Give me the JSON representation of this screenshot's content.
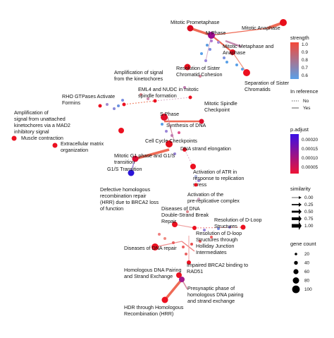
{
  "nodes": [
    {
      "id": "mitotic-prometaphase",
      "label": [
        "Mitotic Prometaphase"
      ],
      "color": "#d90a1f"
    },
    {
      "id": "m-phase",
      "label": [
        "M Phase"
      ],
      "color": "#9b0a8e"
    },
    {
      "id": "mitotic-anaphase",
      "label": [
        "Mitotic Anaphase"
      ],
      "color": "#e80e1a"
    },
    {
      "id": "mitotic-metaphase-anaphase",
      "label": [
        "Mitotic Metaphase and",
        "Anaphase"
      ],
      "color": "#e40e1c"
    },
    {
      "id": "resolution-sister-chromatid-cohesion",
      "label": [
        "Resolution of Sister",
        "Chromatid Cohesion"
      ],
      "color": "#e60f1e"
    },
    {
      "id": "separation-sister-chromatids",
      "label": [
        "Separation of Sister",
        "Chromatids"
      ],
      "color": "#ec0f1f"
    },
    {
      "id": "amplification-signal-kinetochores",
      "label": [
        "Amplification of signal",
        "from the kinetochores"
      ],
      "color": "#ec1020"
    },
    {
      "id": "eml4-nudc",
      "label": [
        "EML4 and NUDC in mitotic",
        "spindle formation"
      ],
      "color": "#ec1020"
    },
    {
      "id": "rho-gtpases-formins",
      "label": [
        "RHO GTPases Activate",
        "Formins"
      ],
      "color": "#ec1020"
    },
    {
      "id": "mitotic-spindle-checkpoint",
      "label": [
        "Mitotic Spindle",
        "Checkpoint"
      ],
      "color": "#ec1020"
    },
    {
      "id": "amplification-unattached",
      "label": [
        "Amplification of",
        "signal from unattached",
        "kinetochores via a MAD2",
        "inhibitory signal"
      ],
      "color": "#ec1020"
    },
    {
      "id": "s-phase",
      "label": [
        "S Phase"
      ],
      "color": "#e00e2a"
    },
    {
      "id": "synthesis-dna",
      "label": [
        "Synthesis of DNA"
      ],
      "color": "#e00e2a"
    },
    {
      "id": "muscle-contraction",
      "label": [
        "Muscle contraction"
      ],
      "color": "#ec1020"
    },
    {
      "id": "extracellular-matrix",
      "label": [
        "Extracellular matrix",
        "organization"
      ],
      "color": "#ec1020"
    },
    {
      "id": "cell-cycle-checkpoints",
      "label": [
        "Cell Cycle Checkpoints"
      ],
      "color": "#e40e1c"
    },
    {
      "id": "dna-strand-elongation",
      "label": [
        "DNA strand elongation"
      ],
      "color": "#ec1020"
    },
    {
      "id": "mitotic-g1-g1s",
      "label": [
        "Mitotic G1 phase and G1/S",
        "transition"
      ],
      "color": "#dc0a32"
    },
    {
      "id": "g1s-transition",
      "label": [
        "G1/S Transition"
      ],
      "color": "#2a14d8"
    },
    {
      "id": "activation-atr",
      "label": [
        "Activation of ATR in",
        "response to replication",
        "stress"
      ],
      "color": "#ec1020"
    },
    {
      "id": "activation-prereplicative",
      "label": [
        "Activation of the",
        "pre-replicative complex"
      ],
      "color": "#ec1020"
    },
    {
      "id": "defective-hrr",
      "label": [
        "Defective homologous",
        "recombination repair",
        "(HRR) due to BRCA2 loss",
        "of function"
      ],
      "color": "#ec1020"
    },
    {
      "id": "diseases-dsb-repair",
      "label": [
        "Diseases of DNA",
        "Double-Strand Break",
        "Repair"
      ],
      "color": "#ec1020"
    },
    {
      "id": "resolution-dloop-structures",
      "label": [
        "Resolution of D-Loop",
        "Structures"
      ],
      "color": "#ec1020"
    },
    {
      "id": "resolution-dloop-hj",
      "label": [
        "Resolution of D-loop",
        "Structures through",
        "Holliday Junction",
        "Intermediates"
      ],
      "color": "#ec1020"
    },
    {
      "id": "diseases-dna-repair",
      "label": [
        "Diseases of DNA repair"
      ],
      "color": "#ec1020"
    },
    {
      "id": "impaired-brca2",
      "label": [
        "Impaired BRCA2 binding to",
        "RAD51"
      ],
      "color": "#ec1020"
    },
    {
      "id": "homologous-dna-pairing",
      "label": [
        "Homologous DNA Pairing",
        "and Strand Exchange"
      ],
      "color": "#ec1020"
    },
    {
      "id": "presynaptic-phase",
      "label": [
        "Presynaptic phase of",
        "homologous DNA pairing",
        "and strand exchange"
      ],
      "color": "#a21a8a"
    },
    {
      "id": "hdr-through-hrr",
      "label": [
        "HDR through Homologous",
        "Recombination (HRR)"
      ],
      "color": "#ec1020"
    }
  ],
  "legend": {
    "strength": {
      "title": "strength",
      "ticks": [
        "1.0",
        "0.9",
        "0.8",
        "0.7",
        "0.6"
      ],
      "colors": [
        "#f4493a",
        "#5aa0e8"
      ]
    },
    "in_reference": {
      "title": "In reference",
      "items": [
        "No",
        "Yes"
      ]
    },
    "p_adjust": {
      "title": "p.adjust",
      "ticks": [
        "0.00020",
        "0.00015",
        "0.00010",
        "0.00005"
      ],
      "colors": [
        "#3a12e6",
        "#ee1436"
      ]
    },
    "similarity": {
      "title": "similarity",
      "ticks": [
        "0.00",
        "0.25",
        "0.50",
        "0.75",
        "1.00"
      ]
    },
    "gene_count": {
      "title": "gene count",
      "ticks": [
        "20",
        "40",
        "60",
        "80",
        "100"
      ]
    }
  }
}
